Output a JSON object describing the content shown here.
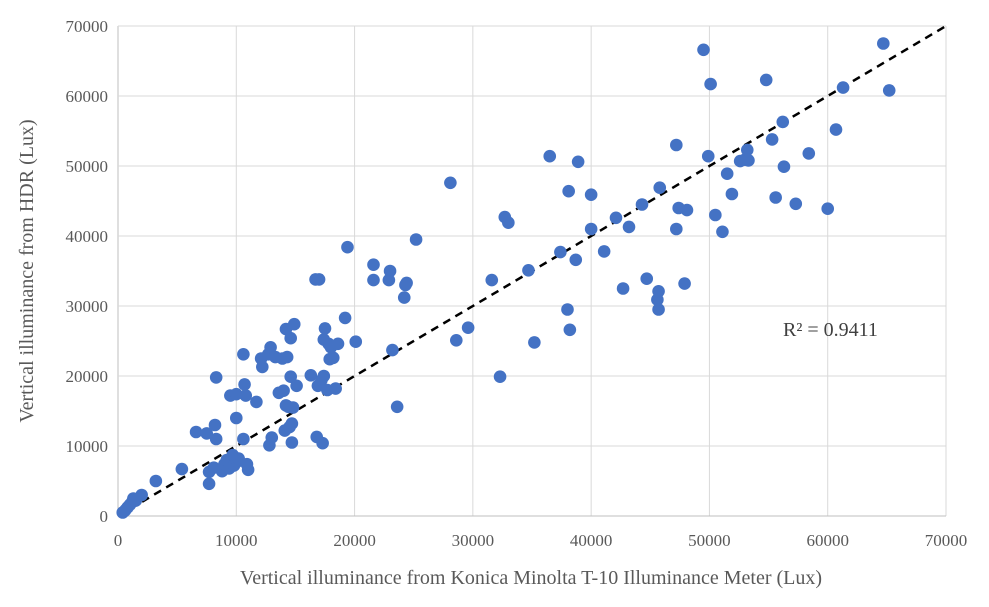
{
  "chart_data": {
    "type": "scatter",
    "title": "",
    "xlabel": "Vertical illuminance from Konica Minolta T-10 Illuminance Meter (Lux)",
    "ylabel": "Vertical illuminance from HDR (Lux)",
    "xlim": [
      0,
      70000
    ],
    "ylim": [
      0,
      70000
    ],
    "x_ticks": [
      0,
      10000,
      20000,
      30000,
      40000,
      50000,
      60000,
      70000
    ],
    "y_ticks": [
      0,
      10000,
      20000,
      30000,
      40000,
      50000,
      60000,
      70000
    ],
    "grid": "vertical and horizontal major gridlines",
    "legend": "none",
    "marker_color": "#4472C4",
    "trendline": {
      "style": "dashed black linear",
      "x": [
        0,
        70000
      ],
      "y": [
        0,
        70000
      ],
      "r_squared_label": "R² = 0.9411"
    },
    "series": [
      {
        "points": [
          [
            400,
            500
          ],
          [
            600,
            800
          ],
          [
            800,
            1200
          ],
          [
            1000,
            1600
          ],
          [
            1200,
            2000
          ],
          [
            1300,
            2500
          ],
          [
            1500,
            2200
          ],
          [
            2000,
            3000
          ],
          [
            3200,
            5000
          ],
          [
            5400,
            6700
          ],
          [
            6600,
            12000
          ],
          [
            7500,
            11800
          ],
          [
            7700,
            4600
          ],
          [
            7700,
            6300
          ],
          [
            8100,
            6900
          ],
          [
            8200,
            13000
          ],
          [
            8300,
            11000
          ],
          [
            8300,
            19800
          ],
          [
            8800,
            6400
          ],
          [
            9000,
            7400
          ],
          [
            9200,
            8000
          ],
          [
            9400,
            6800
          ],
          [
            9500,
            17200
          ],
          [
            9700,
            8700
          ],
          [
            9800,
            7200
          ],
          [
            10000,
            17400
          ],
          [
            10000,
            14000
          ],
          [
            10100,
            7800
          ],
          [
            10200,
            8200
          ],
          [
            10600,
            11000
          ],
          [
            10600,
            23100
          ],
          [
            10700,
            18800
          ],
          [
            10800,
            17200
          ],
          [
            10900,
            7400
          ],
          [
            11000,
            6600
          ],
          [
            11700,
            16300
          ],
          [
            12100,
            22500
          ],
          [
            12200,
            21300
          ],
          [
            12700,
            23100
          ],
          [
            12800,
            10100
          ],
          [
            12900,
            24100
          ],
          [
            13000,
            11200
          ],
          [
            13300,
            22700
          ],
          [
            13600,
            17600
          ],
          [
            13900,
            22500
          ],
          [
            14000,
            17900
          ],
          [
            14100,
            12200
          ],
          [
            14200,
            26700
          ],
          [
            14200,
            15800
          ],
          [
            14300,
            22700
          ],
          [
            14400,
            15600
          ],
          [
            14500,
            12700
          ],
          [
            14600,
            25400
          ],
          [
            14600,
            19900
          ],
          [
            14700,
            10500
          ],
          [
            14700,
            13200
          ],
          [
            14800,
            15500
          ],
          [
            14900,
            27400
          ],
          [
            15100,
            18600
          ],
          [
            16300,
            20100
          ],
          [
            16700,
            33800
          ],
          [
            16800,
            11300
          ],
          [
            16900,
            18600
          ],
          [
            17000,
            33800
          ],
          [
            17200,
            19400
          ],
          [
            17300,
            10400
          ],
          [
            17400,
            20000
          ],
          [
            17400,
            25200
          ],
          [
            17500,
            26800
          ],
          [
            17700,
            18000
          ],
          [
            17800,
            24600
          ],
          [
            17900,
            22400
          ],
          [
            18000,
            24100
          ],
          [
            18200,
            22600
          ],
          [
            18400,
            18200
          ],
          [
            18600,
            24600
          ],
          [
            19200,
            28300
          ],
          [
            19400,
            38400
          ],
          [
            20100,
            24900
          ],
          [
            21600,
            33700
          ],
          [
            21600,
            35900
          ],
          [
            22900,
            33700
          ],
          [
            23000,
            35000
          ],
          [
            23200,
            23700
          ],
          [
            23600,
            15600
          ],
          [
            24200,
            31200
          ],
          [
            24300,
            33000
          ],
          [
            24400,
            33300
          ],
          [
            25200,
            39500
          ],
          [
            28100,
            47600
          ],
          [
            28600,
            25100
          ],
          [
            29600,
            26900
          ],
          [
            31600,
            33700
          ],
          [
            32300,
            19900
          ],
          [
            32700,
            42700
          ],
          [
            33000,
            41900
          ],
          [
            34700,
            35100
          ],
          [
            35200,
            24800
          ],
          [
            36500,
            51400
          ],
          [
            37400,
            37700
          ],
          [
            38000,
            29500
          ],
          [
            38100,
            46400
          ],
          [
            38200,
            26600
          ],
          [
            38700,
            36600
          ],
          [
            38900,
            50600
          ],
          [
            40000,
            45900
          ],
          [
            40000,
            41000
          ],
          [
            41100,
            37800
          ],
          [
            42100,
            42600
          ],
          [
            42700,
            32500
          ],
          [
            43200,
            41300
          ],
          [
            44300,
            44500
          ],
          [
            44700,
            33900
          ],
          [
            45600,
            30900
          ],
          [
            45700,
            29500
          ],
          [
            45700,
            32100
          ],
          [
            45800,
            46900
          ],
          [
            47200,
            53000
          ],
          [
            47200,
            41000
          ],
          [
            47400,
            44000
          ],
          [
            47900,
            33200
          ],
          [
            48100,
            43700
          ],
          [
            49500,
            66600
          ],
          [
            49900,
            51400
          ],
          [
            50100,
            61700
          ],
          [
            50500,
            43000
          ],
          [
            51100,
            40600
          ],
          [
            51500,
            48900
          ],
          [
            51900,
            46000
          ],
          [
            52600,
            50700
          ],
          [
            53000,
            50900
          ],
          [
            53200,
            52300
          ],
          [
            53300,
            50800
          ],
          [
            54800,
            62300
          ],
          [
            55300,
            53800
          ],
          [
            55600,
            45500
          ],
          [
            56200,
            56300
          ],
          [
            56300,
            49900
          ],
          [
            57300,
            44600
          ],
          [
            58400,
            51800
          ],
          [
            60000,
            43900
          ],
          [
            60700,
            55200
          ],
          [
            61300,
            61200
          ],
          [
            64700,
            67500
          ],
          [
            65200,
            60800
          ]
        ]
      }
    ]
  }
}
